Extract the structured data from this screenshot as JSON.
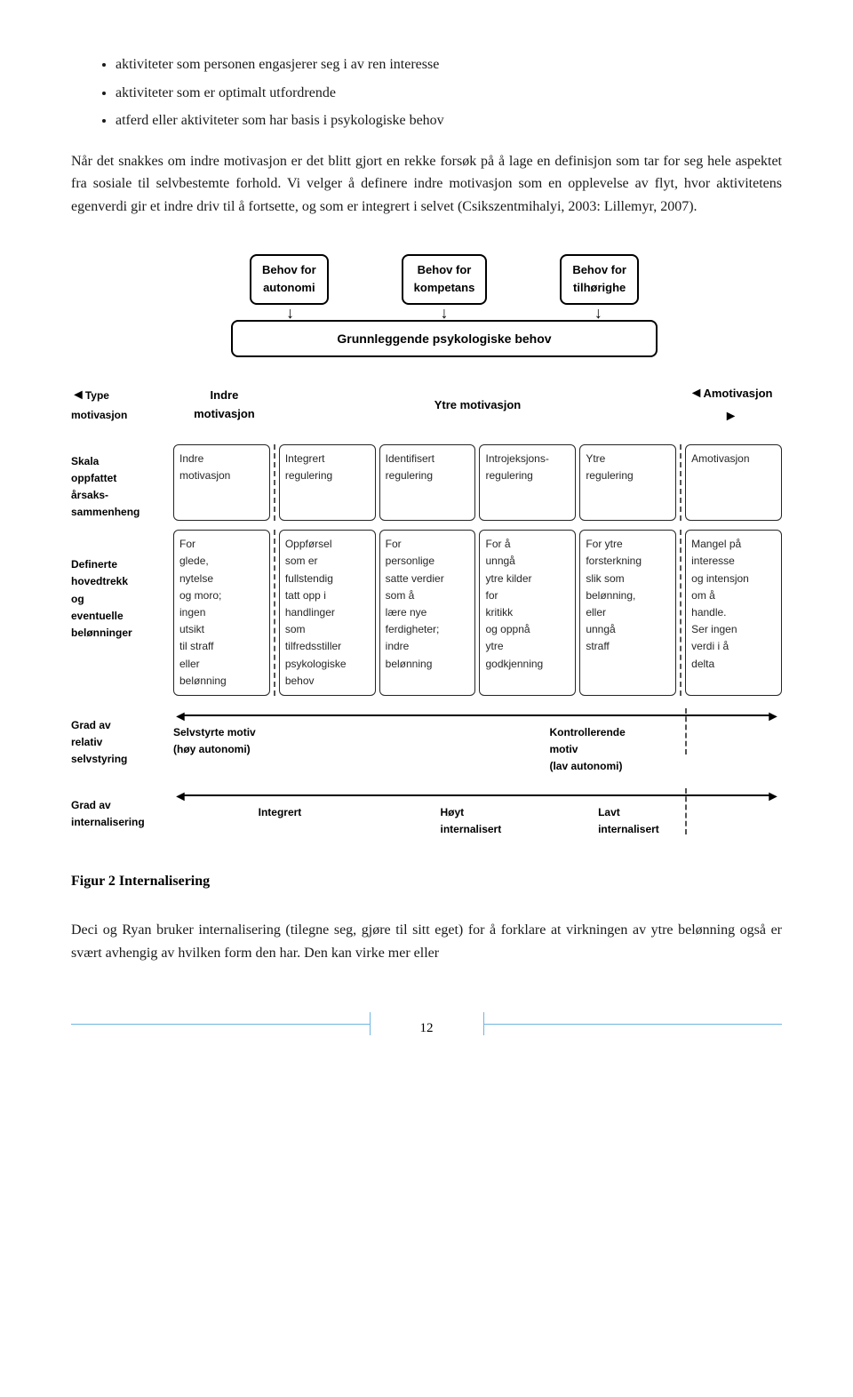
{
  "bullets": [
    "aktiviteter som personen engasjerer seg i av ren interesse",
    "aktiviteter som er optimalt utfordrende",
    "atferd eller aktiviteter som har basis i psykologiske behov"
  ],
  "paragraph1": "Når det snakkes om indre motivasjon er det blitt gjort en rekke forsøk på å lage en definisjon som tar for seg hele aspektet fra sosiale til selvbestemte forhold. Vi velger å definere indre motivasjon som en opplevelse av flyt, hvor aktivitetens egenverdi gir et indre driv til å fortsette, og som er integrert i selvet (Csikszentmihalyi, 2003: Lillemyr, 2007).",
  "diagram": {
    "needs": [
      "Behov for\nautonomi",
      "Behov for\nkompetans",
      "Behov for\ntilhørighe"
    ],
    "psych_box": "Grunnleggende psykologiske behov",
    "type_row": {
      "label": "Type motivasjon",
      "cells": [
        "Indre\nmotivasjon",
        "Ytre motivasjon",
        "Amotivasjon"
      ]
    },
    "scale_row": {
      "label": "Skala\noppfattet\nårsaks-\nsammenheng",
      "cells": [
        "Indre\nmotivasjon",
        "Integrert\nregulering",
        "Identifisert\nregulering",
        "Introjeksjons-\nregulering",
        "Ytre\nregulering",
        "Amotivasjon"
      ]
    },
    "traits_row": {
      "label": "Definerte\nhovedtrekk\nog\neventuelle\nbelønninger",
      "cells": [
        "For\nglede,\nnytelse\nog moro;\ningen\nutsikt\ntil straff\neller\nbelønning",
        "Oppførsel\nsom er\nfullstendig\ntatt opp i\nhandlinger\nsom\ntilfredsstiller\npsykologiske\nbehov",
        "For\npersonlige\nsatte verdier\nsom å\nlære nye\nferdigheter;\nindre\nbelønning",
        "For å\nunngå\nytre kilder\nfor\nkritikk\nog oppnå\nytre\ngodkjenning",
        "For ytre\nforsterkning\nslik som\nbelønning,\neller\nunngå\nstraff",
        "Mangel på\ninteresse\nog intensjon\nom å\nhandle.\nSer ingen\nverdi i å\ndelta"
      ]
    },
    "axis1": {
      "label": "Grad av\nrelativ\nselvstyring",
      "left": "Selvstyrte motiv\n(høy autonomi)",
      "right": "Kontrollerende\nmotiv\n(lav autonomi)"
    },
    "axis2": {
      "label": "Grad av\ninternalisering",
      "l": "Integrert",
      "m": "Høyt\ninternalisert",
      "r": "Lavt\ninternalisert"
    }
  },
  "fig_caption": "Figur 2 Internalisering",
  "paragraph2": "Deci og Ryan bruker internalisering (tilegne seg, gjøre til sitt eget) for å forklare at virkningen av ytre belønning også er svært avhengig av hvilken form den har. Den kan virke mer eller",
  "page_number": "12",
  "colors": {
    "text": "#1a1a1a",
    "box_text": "#262626",
    "page_num_line": "#6fb6e0"
  },
  "fonts": {
    "body_family": "Times New Roman",
    "body_size_pt": 12,
    "diagram_family": "Arial",
    "diagram_label_size_pt": 9
  }
}
